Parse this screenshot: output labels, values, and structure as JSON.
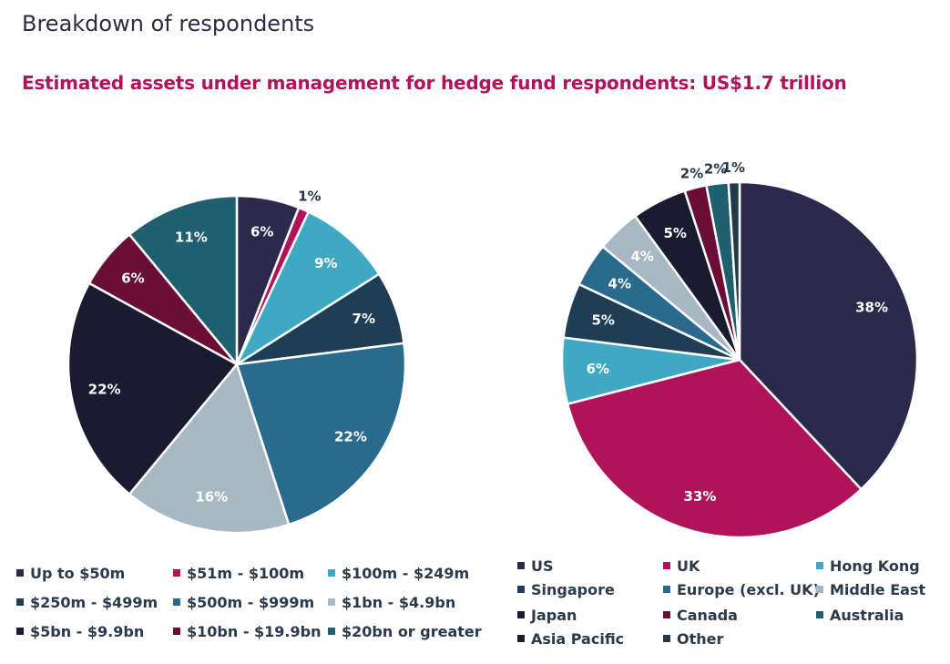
{
  "title": "Breakdown of respondents",
  "subtitle": "Estimated assets under management for hedge fund respondents: US$1.7 trillion",
  "chart_data": [
    {
      "type": "pie",
      "categories": [
        "Up to $50m",
        "$51m - $100m",
        "$100m - $249m",
        "$250m - $499m",
        "$500m - $999m",
        "$1bn - $4.9bn",
        "$5bn - $9.9bn",
        "$10bn - $19.9bn",
        "$20bn or greater"
      ],
      "values": [
        6,
        1,
        9,
        7,
        22,
        16,
        22,
        6,
        11
      ],
      "labels": [
        "6%",
        "1%",
        "9%",
        "7%",
        "22%",
        "16%",
        "22%",
        "6%",
        "11%"
      ],
      "colors": [
        "#2b2a4c",
        "#b0135a",
        "#3fa9c4",
        "#1f3d55",
        "#2a6a8c",
        "#a7b8c2",
        "#1a1a30",
        "#6b0d35",
        "#1f5f6e"
      ],
      "legend": "bottom"
    },
    {
      "type": "pie",
      "categories": [
        "US",
        "UK",
        "Hong Kong",
        "Singapore",
        "Europe (excl. UK)",
        "Middle East",
        "Japan",
        "Canada",
        "Australia",
        "Asia Pacific",
        "Other"
      ],
      "values": [
        38,
        33,
        6,
        5,
        4,
        4,
        5,
        2,
        2,
        0,
        1
      ],
      "labels": [
        "38%",
        "33%",
        "6%",
        "5%",
        "4%",
        "4%",
        "5%",
        "2%",
        "2%",
        "",
        "1%"
      ],
      "colors": [
        "#2b2a4c",
        "#b0135a",
        "#3fa9c4",
        "#1f3d55",
        "#2a6a8c",
        "#a7b8c2",
        "#1a1a30",
        "#6b0d35",
        "#1f5f6e",
        "#1a1a30",
        "#23394a"
      ],
      "legend": "bottom"
    }
  ]
}
